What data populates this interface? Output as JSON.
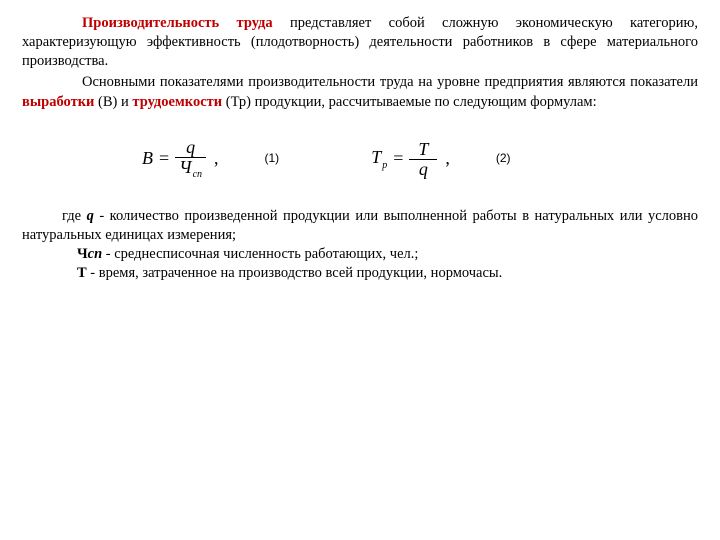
{
  "colors": {
    "accent": "#c00000",
    "text": "#000000",
    "bg": "#ffffff"
  },
  "typography": {
    "body_family": "Times New Roman",
    "body_size_pt": 14.5,
    "formula_size_pt": 18,
    "eqnum_family": "Arial",
    "eqnum_size_pt": 12
  },
  "para1": {
    "lead": "Производительность труда",
    "rest": " представляет собой сложную экономическую категорию, характеризующую эффективность (плодотворность) деятельности работников в сфере материального производства."
  },
  "para2": {
    "a": "Основными показателями производительности труда на уровне предприятия являются показатели ",
    "b": "выработки",
    "c": " (В) и ",
    "d": "трудоемкости",
    "e": " (Тр) продукции, рассчитываемые по следующим формулам:"
  },
  "formula": {
    "eq1": {
      "lhs": "B",
      "num": "q",
      "den_main": "Ч",
      "den_sub": "сп",
      "label": "(1)"
    },
    "eq2": {
      "lhs_main": "T",
      "lhs_sub": "р",
      "num": "T",
      "den": "q",
      "label": "(2)"
    }
  },
  "defs": {
    "q": {
      "pre": "где ",
      "sym": "q",
      "text": " - количество произведенной продукции или выполненной работы в натуральных или условно натуральных единицах измерения;"
    },
    "ch": {
      "sym_main": "Ч",
      "sym_sub": "сп",
      "text": " - среднесписочная численность работающих, чел.;"
    },
    "t": {
      "sym": "Т",
      "text": " - время, затраченное на производство всей продукции, нормочасы."
    }
  }
}
